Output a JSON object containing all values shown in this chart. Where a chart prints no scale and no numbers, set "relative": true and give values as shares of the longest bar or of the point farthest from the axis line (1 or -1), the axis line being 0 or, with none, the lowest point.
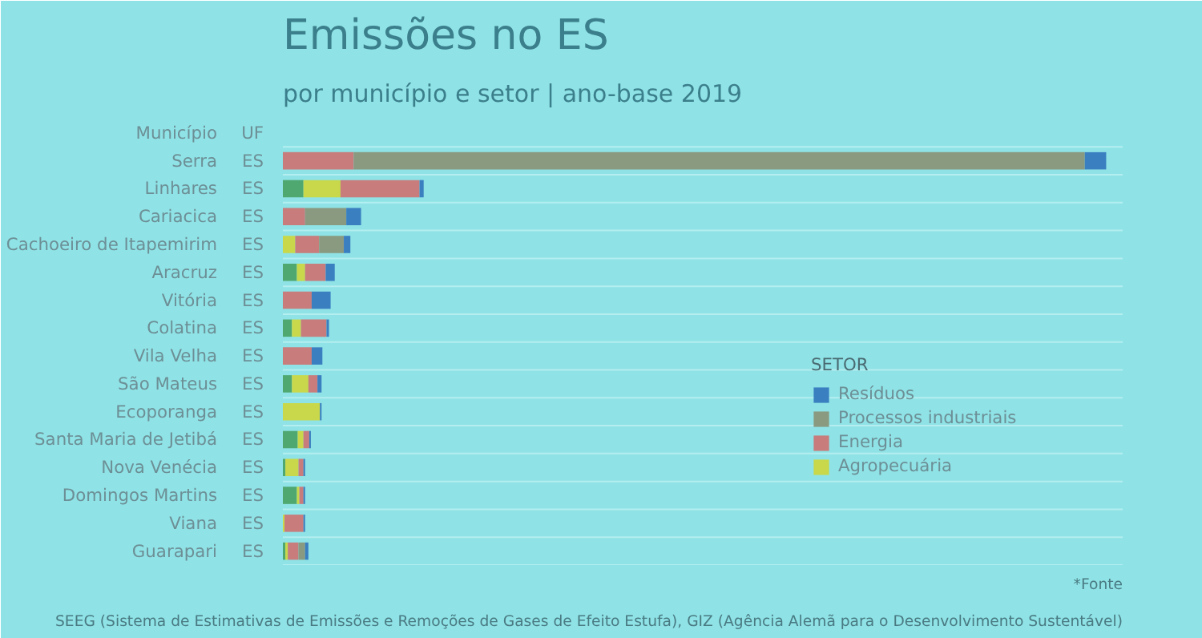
{
  "chart_data": {
    "type": "bar",
    "orientation": "horizontal",
    "stacked": true,
    "relative": true,
    "title": "Emissões no ES",
    "subtitle": "por município e setor | ano-base 2019",
    "ylabel": "Município",
    "y2label": "UF",
    "legend_title": "SETOR",
    "categories": [
      "Serra",
      "Linhares",
      "Cariacica",
      "Cachoeiro de Itapemirim",
      "Aracruz",
      "Vitória",
      "Colatina",
      "Vila Velha",
      "São Mateus",
      "Ecoporanga",
      "Santa Maria de Jetibá",
      "Nova Venécia",
      "Domingos Martins",
      "Viana",
      "Guarapari"
    ],
    "y2_categories": [
      "ES",
      "ES",
      "ES",
      "ES",
      "ES",
      "ES",
      "ES",
      "ES",
      "ES",
      "ES",
      "ES",
      "ES",
      "ES",
      "ES",
      "ES"
    ],
    "series": [
      {
        "color": "#4fa870",
        "values": [
          0,
          0.025,
          0,
          0,
          0.017,
          0,
          0.011,
          0,
          0.011,
          0,
          0.018,
          0.003,
          0.017,
          0,
          0.003
        ]
      },
      {
        "name": "Agropecuária",
        "color": "#c8d84a",
        "values": [
          0,
          0.045,
          0,
          0.015,
          0.01,
          0,
          0.011,
          0,
          0.02,
          0.045,
          0.007,
          0.016,
          0.003,
          0.002,
          0.003
        ]
      },
      {
        "name": "Energia",
        "color": "#c87c7c",
        "values": [
          0.086,
          0.096,
          0.027,
          0.029,
          0.025,
          0.035,
          0.031,
          0.035,
          0.011,
          0,
          0.007,
          0.006,
          0.005,
          0.023,
          0.013
        ]
      },
      {
        "name": "Processos industriais",
        "color": "#8a9a80",
        "values": [
          0.888,
          0,
          0.05,
          0.03,
          0,
          0,
          0,
          0,
          0,
          0,
          0,
          0,
          0,
          0,
          0.008
        ]
      },
      {
        "name": "Resíduos",
        "color": "#3a7fc0",
        "values": [
          0.026,
          0.005,
          0.018,
          0.008,
          0.011,
          0.023,
          0.003,
          0.013,
          0.005,
          0.002,
          0.002,
          0.002,
          0.002,
          0.002,
          0.004
        ]
      }
    ],
    "legend": "right",
    "grid": "y",
    "annotations": [
      "*Fonte",
      "SEEG (Sistema de Estimativas de Emissões e Remoções de Gases de Efeito Estufa), GIZ (Agência Alemã para o Desenvolvimento Sustentável)"
    ]
  }
}
